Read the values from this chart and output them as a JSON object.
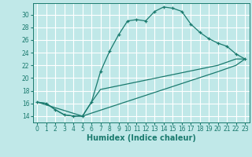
{
  "xlabel": "Humidex (Indice chaleur)",
  "bg_color": "#c0e8e8",
  "grid_color": "#ffffff",
  "line_color": "#1a7a6e",
  "xlim": [
    -0.5,
    23.5
  ],
  "ylim": [
    13.0,
    31.8
  ],
  "xticks": [
    0,
    1,
    2,
    3,
    4,
    5,
    6,
    7,
    8,
    9,
    10,
    11,
    12,
    13,
    14,
    15,
    16,
    17,
    18,
    19,
    20,
    21,
    22,
    23
  ],
  "yticks": [
    14,
    16,
    18,
    20,
    22,
    24,
    26,
    28,
    30
  ],
  "line1_x": [
    0,
    1,
    2,
    3,
    4,
    5,
    6,
    7,
    8,
    9,
    10,
    11,
    12,
    13,
    14,
    15,
    16,
    17,
    18,
    19,
    20,
    21,
    22,
    23
  ],
  "line1_y": [
    16.2,
    16.0,
    15.0,
    14.2,
    14.0,
    14.0,
    16.2,
    21.0,
    24.2,
    26.8,
    29.0,
    29.2,
    29.0,
    30.5,
    31.2,
    31.0,
    30.5,
    28.5,
    27.2,
    26.2,
    25.5,
    25.0,
    23.8,
    23.0
  ],
  "line2_x": [
    0,
    1,
    2,
    3,
    4,
    5,
    6,
    7,
    20,
    21,
    22,
    23
  ],
  "line2_y": [
    16.2,
    16.0,
    15.0,
    14.2,
    14.0,
    14.0,
    16.2,
    18.2,
    22.0,
    22.5,
    23.0,
    23.0
  ],
  "line3_x": [
    0,
    5,
    20,
    21,
    22,
    23
  ],
  "line3_y": [
    16.2,
    14.0,
    21.0,
    21.5,
    22.0,
    23.0
  ]
}
